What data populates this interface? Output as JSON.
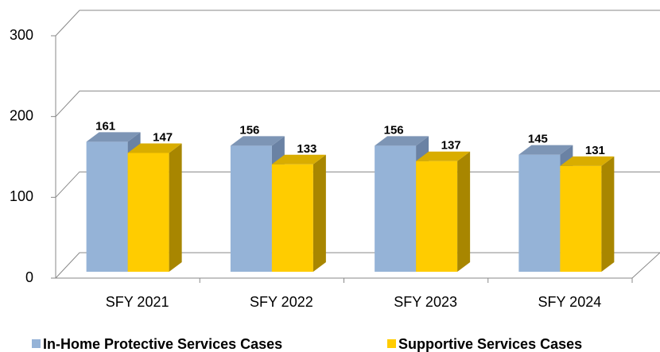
{
  "chart_data": {
    "type": "bar",
    "categories": [
      "SFY 2021",
      "SFY 2022",
      "SFY 2023",
      "SFY 2024"
    ],
    "series": [
      {
        "name": "In-Home Protective Services Cases",
        "color": "#95b3d7",
        "values": [
          161,
          156,
          156,
          145
        ]
      },
      {
        "name": "Supportive Services Cases",
        "color": "#ffcc00",
        "values": [
          147,
          133,
          137,
          131
        ]
      }
    ],
    "ylim": [
      0,
      300
    ],
    "yticks": [
      0,
      100,
      200,
      300
    ],
    "grid": true,
    "legend": "bottom"
  }
}
